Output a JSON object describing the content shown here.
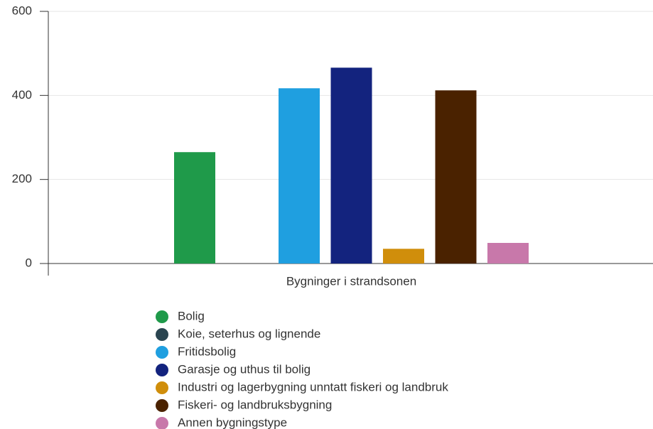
{
  "chart_data": {
    "type": "bar",
    "categories": [
      "Bygninger i strandsonen"
    ],
    "series": [
      {
        "name": "Bolig",
        "color": "#1f9a4a",
        "values": [
          265
        ]
      },
      {
        "name": "Koie, seterhus og lignende",
        "color": "#2a4550",
        "values": [
          0
        ]
      },
      {
        "name": "Fritidsbolig",
        "color": "#1f9fe0",
        "values": [
          417
        ]
      },
      {
        "name": "Garasje og uthus til bolig",
        "color": "#13237e",
        "values": [
          466
        ]
      },
      {
        "name": "Industri og lagerbygning unntatt fiskeri og landbruk",
        "color": "#d08e0b",
        "values": [
          35
        ]
      },
      {
        "name": "Fiskeri- og landbruksbygning",
        "color": "#4a2200",
        "values": [
          412
        ]
      },
      {
        "name": "Annen bygningstype",
        "color": "#c878aa",
        "values": [
          49
        ]
      }
    ],
    "ylim": [
      0,
      600
    ],
    "yticks": [
      0,
      200,
      400,
      600
    ],
    "grid": true,
    "legend": "bottom"
  }
}
